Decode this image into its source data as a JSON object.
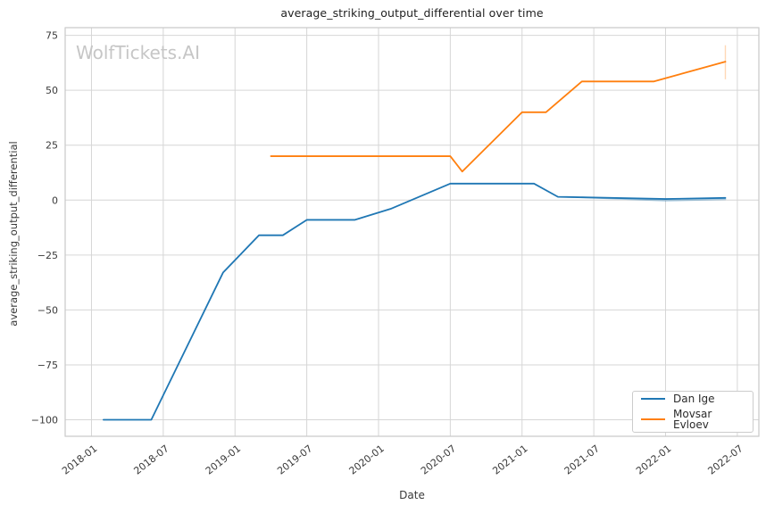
{
  "title": "average_striking_output_differential over time",
  "watermark": "WolfTickets.AI",
  "legend": {
    "items": [
      {
        "label": "Dan Ige",
        "color": "#1f77b4"
      },
      {
        "label": "Movsar Evloev",
        "color": "#ff7f0e"
      }
    ]
  },
  "colors": {
    "blue": "#1f77b4",
    "orange": "#ff7f0e",
    "grid": "#d6d6d6",
    "spine": "#c9c9c9",
    "tick_text": "#3a3a3a",
    "background": "#ffffff"
  },
  "chart_data": {
    "type": "line",
    "title": "average_striking_output_differential over time",
    "xlabel": "Date",
    "ylabel": "average_striking_output_differential",
    "grid": true,
    "legend_position": "lower right",
    "x_tick_labels": [
      "2018-01",
      "2018-07",
      "2019-01",
      "2019-07",
      "2020-01",
      "2020-07",
      "2021-01",
      "2021-07",
      "2022-01",
      "2022-07"
    ],
    "y_ticks": [
      75,
      50,
      25,
      0,
      -25,
      -50,
      -75,
      -100
    ],
    "xlim_months_from_2018_01": [
      -2.2,
      55.8
    ],
    "ylim": [
      -107.5,
      78.5
    ],
    "series": [
      {
        "name": "Dan Ige",
        "color": "#1f77b4",
        "points": [
          [
            "2018-02",
            -100
          ],
          [
            "2018-06",
            -100
          ],
          [
            "2018-12",
            -33
          ],
          [
            "2019-03",
            -16
          ],
          [
            "2019-05",
            -16
          ],
          [
            "2019-07",
            -9
          ],
          [
            "2019-11",
            -9
          ],
          [
            "2020-02",
            -4
          ],
          [
            "2020-07",
            7.5
          ],
          [
            "2021-02",
            7.5
          ],
          [
            "2021-04",
            1.5
          ],
          [
            "2022-01",
            0.5
          ],
          [
            "2022-06",
            1
          ]
        ]
      },
      {
        "name": "Movsar Evloev",
        "color": "#ff7f0e",
        "points": [
          [
            "2019-04",
            20
          ],
          [
            "2020-07",
            20
          ],
          [
            "2020-08",
            13
          ],
          [
            "2021-01",
            40
          ],
          [
            "2021-03",
            40
          ],
          [
            "2021-06",
            54
          ],
          [
            "2021-12",
            54
          ],
          [
            "2022-06",
            63
          ]
        ]
      }
    ],
    "overlay_segments": [
      {
        "name": "faint duplicate of Dan Ige line",
        "color": "#1f77b4",
        "opacity": 0.35,
        "points": [
          [
            "2021-06",
            1.3
          ],
          [
            "2022-01",
            -0.3
          ],
          [
            "2022-06",
            0.4
          ]
        ]
      }
    ],
    "error_bars": [
      {
        "series": "Movsar Evloev",
        "x": "2022-06",
        "lo": 55,
        "hi": 70.5,
        "color": "#ff7f0e",
        "opacity": 0.3
      }
    ]
  }
}
